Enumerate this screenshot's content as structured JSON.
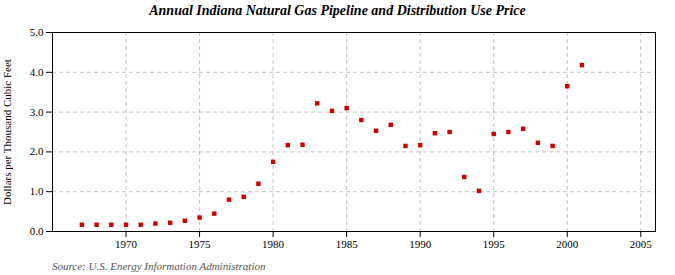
{
  "chart_data": {
    "type": "scatter",
    "title": "Annual Indiana Natural Gas Pipeline and Distribution Use Price",
    "ylabel": "Dollars per Thousand Cubic Feet",
    "annotation": "Source: U.S. Energy Information Administration",
    "x": [
      1967,
      1968,
      1969,
      1970,
      1971,
      1972,
      1973,
      1974,
      1975,
      1976,
      1977,
      1978,
      1979,
      1980,
      1981,
      1982,
      1983,
      1984,
      1985,
      1986,
      1987,
      1988,
      1989,
      1990,
      1991,
      1992,
      1993,
      1994,
      1995,
      1996,
      1997,
      1998,
      1999,
      2000,
      2001
    ],
    "values": [
      0.17,
      0.17,
      0.17,
      0.17,
      0.17,
      0.2,
      0.22,
      0.27,
      0.35,
      0.45,
      0.8,
      0.87,
      1.2,
      1.75,
      2.17,
      2.18,
      3.22,
      3.03,
      3.1,
      2.8,
      2.53,
      2.68,
      2.15,
      2.17,
      2.47,
      2.5,
      1.37,
      1.02,
      2.45,
      2.5,
      2.58,
      2.23,
      2.15,
      3.65,
      4.18
    ],
    "color": "#cc0000",
    "marker": "square",
    "xlim": [
      1965,
      2006
    ],
    "xticks": [
      1970,
      1975,
      1980,
      1985,
      1990,
      1995,
      2000,
      2005
    ],
    "ylim": [
      0.0,
      5.0
    ],
    "yticks": [
      {
        "value": 0,
        "label": "0.0"
      },
      {
        "value": 1,
        "label": "1.0"
      },
      {
        "value": 2,
        "label": "2.0"
      },
      {
        "value": 3,
        "label": "3.0"
      },
      {
        "value": 4,
        "label": "4.0"
      },
      {
        "value": 5,
        "label": "5.0"
      }
    ],
    "grid": true
  }
}
